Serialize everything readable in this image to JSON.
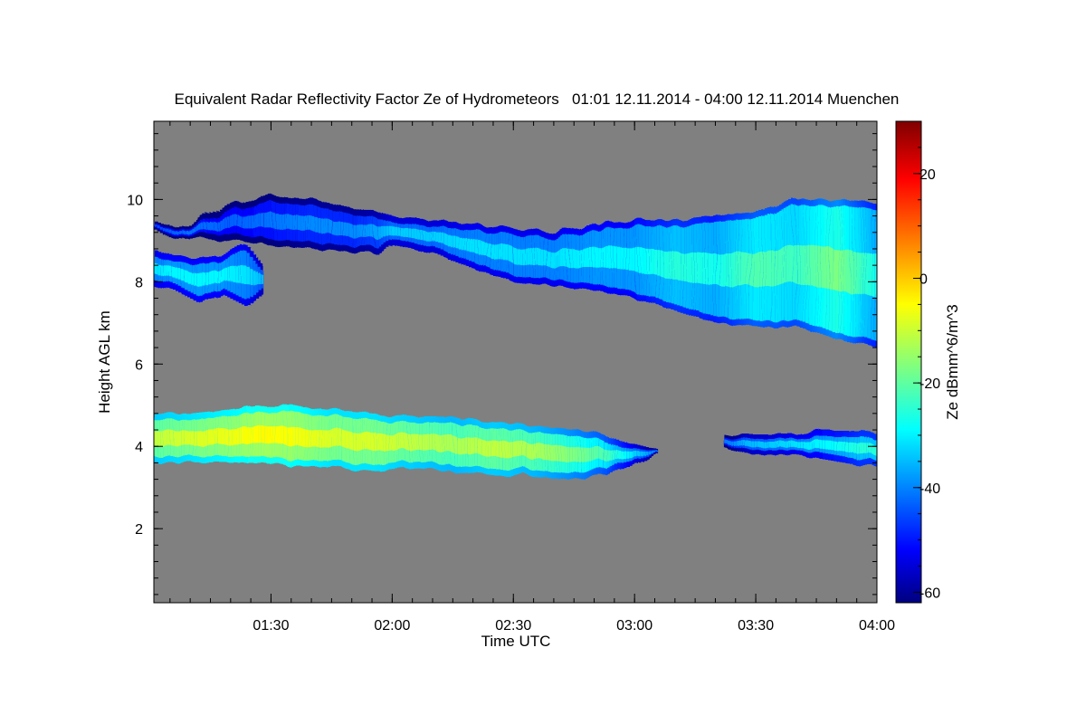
{
  "chart_data": {
    "type": "heatmap",
    "title": "Equivalent Radar Reflectivity Factor Ze of Hydrometeors   01:01 12.11.2014 - 04:00 12.11.2014 Muenchen",
    "xlabel": "Time UTC",
    "ylabel": "Height AGL km",
    "xlim": [
      61,
      240
    ],
    "ylim": [
      0.2,
      11.9
    ],
    "x_ticks": [
      {
        "value": 90,
        "label": "01:30"
      },
      {
        "value": 120,
        "label": "02:00"
      },
      {
        "value": 150,
        "label": "02:30"
      },
      {
        "value": 180,
        "label": "03:00"
      },
      {
        "value": 210,
        "label": "03:30"
      },
      {
        "value": 240,
        "label": "04:00"
      }
    ],
    "y_ticks": [
      {
        "value": 2,
        "label": "2"
      },
      {
        "value": 4,
        "label": "4"
      },
      {
        "value": 6,
        "label": "6"
      },
      {
        "value": 8,
        "label": "8"
      },
      {
        "value": 10,
        "label": "10"
      }
    ],
    "colorbar": {
      "label": "Ze dBmm^6/m^3",
      "range": [
        -62,
        30
      ],
      "ticks": [
        {
          "value": -60,
          "label": "-60"
        },
        {
          "value": -40,
          "label": "-40"
        },
        {
          "value": -20,
          "label": "-20"
        },
        {
          "value": 0,
          "label": "0"
        },
        {
          "value": 20,
          "label": "20"
        }
      ]
    },
    "no_data_color": "#808080",
    "layers": [
      {
        "name": "upper cirrus layer",
        "x": [
          61,
          66,
          70,
          80,
          90,
          100,
          110,
          116,
          120,
          130,
          140,
          150,
          160,
          170,
          180,
          190,
          200,
          210,
          220,
          230,
          240
        ],
        "top": [
          9.5,
          9.3,
          9.4,
          9.9,
          10.1,
          10.0,
          9.8,
          9.7,
          9.6,
          9.5,
          9.4,
          9.3,
          9.2,
          9.4,
          9.5,
          9.5,
          9.6,
          9.7,
          10.0,
          10.0,
          9.9
        ],
        "bottom": [
          9.3,
          9.0,
          9.1,
          9.0,
          8.9,
          8.8,
          8.7,
          8.7,
          8.9,
          8.7,
          8.3,
          8.0,
          7.9,
          7.8,
          7.6,
          7.3,
          7.0,
          6.9,
          6.9,
          6.6,
          6.4
        ],
        "core": [
          -45,
          -42,
          -40,
          -42,
          -40,
          -38,
          -38,
          -36,
          -32,
          -32,
          -30,
          -30,
          -30,
          -28,
          -28,
          -24,
          -26,
          -20,
          -22,
          -16,
          -26
        ]
      },
      {
        "name": "early cirrus fragment",
        "x": [
          61,
          66,
          72,
          78,
          84,
          88
        ],
        "top": [
          8.8,
          8.6,
          8.6,
          8.7,
          8.9,
          8.4
        ],
        "bottom": [
          7.9,
          7.8,
          7.5,
          7.7,
          7.4,
          7.7
        ],
        "core": [
          -30,
          -28,
          -28,
          -28,
          -30,
          -34
        ]
      },
      {
        "name": "middle layer",
        "x": [
          61,
          70,
          80,
          88,
          95,
          105,
          115,
          125,
          135,
          145,
          155,
          165,
          172,
          178,
          186
        ],
        "top": [
          4.8,
          4.8,
          4.9,
          5.0,
          5.0,
          4.9,
          4.8,
          4.7,
          4.7,
          4.6,
          4.5,
          4.4,
          4.3,
          4.1,
          3.9
        ],
        "bottom": [
          3.6,
          3.6,
          3.6,
          3.6,
          3.5,
          3.5,
          3.4,
          3.5,
          3.4,
          3.3,
          3.3,
          3.2,
          3.3,
          3.5,
          3.8
        ],
        "core": [
          -10,
          -8,
          -6,
          -4,
          -5,
          -8,
          -8,
          -10,
          -12,
          -10,
          -12,
          -16,
          -20,
          -28,
          -40
        ]
      },
      {
        "name": "late middle layer",
        "x": [
          202,
          208,
          214,
          220,
          226,
          232,
          236,
          240
        ],
        "top": [
          4.3,
          4.3,
          4.3,
          4.3,
          4.4,
          4.4,
          4.4,
          4.3
        ],
        "bottom": [
          4.0,
          3.8,
          3.8,
          3.8,
          3.7,
          3.6,
          3.5,
          3.5
        ],
        "core": [
          -40,
          -34,
          -32,
          -30,
          -28,
          -26,
          -24,
          -24
        ]
      }
    ]
  }
}
